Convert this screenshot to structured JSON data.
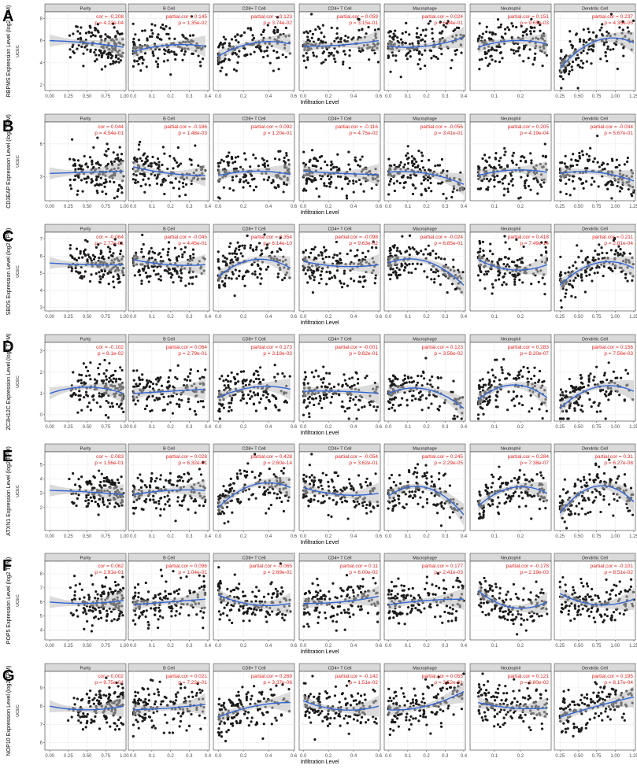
{
  "figure": {
    "xlabel": "Infiltration Level",
    "cohort": "UCEC"
  },
  "colors": {
    "point": "#1a1a1a",
    "fit": "#3366d6",
    "band": "#bdbdbd",
    "stat_text": "#e8231f",
    "strip_bg": "#d9d9d9",
    "grid": "#ebebeb"
  },
  "chart_data": [
    {
      "panel": "A",
      "ylabel": "RBPMS Expression Level (log2 TPM)",
      "yticks": [
        2,
        4,
        6,
        8
      ],
      "ylim": [
        1.5,
        8.6
      ],
      "facets": [
        {
          "name": "Purity",
          "stat1": "cor = -0.208",
          "stat2": "p = 4.22e-04",
          "type": "scatter",
          "trend": [
            6.0,
            5.8,
            5.4
          ]
        },
        {
          "name": "B Cell",
          "stat1": "partial.cor = 0.145",
          "stat2": "p = 1.35e-02",
          "type": "scatter",
          "trend": [
            5.0,
            5.6,
            5.5
          ]
        },
        {
          "name": "CD8+ T Cell",
          "stat1": "partial.cor = 0.123",
          "stat2": "p = 3.74e-02",
          "type": "scatter",
          "trend": [
            4.6,
            5.8,
            5.7
          ]
        },
        {
          "name": "CD4+ T Cell",
          "stat1": "partial.cor = 0.059",
          "stat2": "p = 3.15e-01",
          "type": "scatter",
          "trend": [
            5.5,
            5.6,
            6.0
          ]
        },
        {
          "name": "Macrophage",
          "stat1": "partial.cor = 0.024",
          "stat2": "p = 6.84e-01",
          "type": "scatter",
          "trend": [
            5.5,
            5.5,
            6.3
          ]
        },
        {
          "name": "Neutrophil",
          "stat1": "partial.cor = 0.151",
          "stat2": "p = 9.65e-03",
          "type": "scatter",
          "trend": [
            5.4,
            6.0,
            5.7
          ]
        },
        {
          "name": "Dendritic Cell",
          "stat1": "partial.cor = 0.237",
          "stat2": "p = 4.35e-05",
          "type": "scatter",
          "trend": [
            3.5,
            6.0,
            5.8
          ]
        }
      ]
    },
    {
      "panel": "B",
      "ylabel": "CD3EAP Expression Level (log2 TPM)",
      "yticks": [
        3,
        6
      ],
      "ylim": [
        0.8,
        8.0
      ],
      "facets": [
        {
          "name": "Purity",
          "stat1": "cor = 0.044",
          "stat2": "p = 4.54e-01",
          "type": "scatter",
          "trend": [
            3.3,
            3.4,
            3.5
          ]
        },
        {
          "name": "B Cell",
          "stat1": "partial.cor = -0.186",
          "stat2": "p = 1.48e-03",
          "type": "scatter",
          "trend": [
            3.9,
            3.3,
            3.1
          ]
        },
        {
          "name": "CD8+ T Cell",
          "stat1": "partial.cor = 0.092",
          "stat2": "p = 1.20e-01",
          "type": "scatter",
          "trend": [
            3.1,
            3.5,
            3.2
          ]
        },
        {
          "name": "CD4+ T Cell",
          "stat1": "partial.cor = -0.116",
          "stat2": "p = 4.75e-02",
          "type": "scatter",
          "trend": [
            3.5,
            3.3,
            3.2
          ]
        },
        {
          "name": "Macrophage",
          "stat1": "partial.cor = -0.056",
          "stat2": "p = 3.41e-01",
          "type": "scatter",
          "trend": [
            3.4,
            3.3,
            2.3
          ]
        },
        {
          "name": "Neutrophil",
          "stat1": "partial.cor = 0.205",
          "stat2": "p = 4.19e-04",
          "type": "scatter",
          "trend": [
            3.1,
            3.6,
            3.4
          ]
        },
        {
          "name": "Dendritic Cell",
          "stat1": "partial.cor = -0.034",
          "stat2": "p = 5.67e-01",
          "type": "scatter",
          "trend": [
            3.3,
            3.4,
            2.6
          ]
        }
      ]
    },
    {
      "panel": "C",
      "ylabel": "SBDS Expression Level (log2 TPM)",
      "yticks": [
        3,
        4,
        5,
        6,
        7
      ],
      "ylim": [
        2.8,
        7.4
      ],
      "facets": [
        {
          "name": "Purity",
          "stat1": "cor = -0.064",
          "stat2": "p = 2.77e-01",
          "type": "scatter",
          "trend": [
            5.6,
            5.5,
            5.5
          ]
        },
        {
          "name": "B Cell",
          "stat1": "partial.cor = -0.045",
          "stat2": "p = 4.45e-01",
          "type": "scatter",
          "trend": [
            5.8,
            5.5,
            5.5
          ]
        },
        {
          "name": "CD8+ T Cell",
          "stat1": "partial.cor = 0.354",
          "stat2": "p = 6.14e-10",
          "type": "scatter",
          "trend": [
            4.8,
            5.8,
            5.3
          ]
        },
        {
          "name": "CD4+ T Cell",
          "stat1": "partial.cor = -0.098",
          "stat2": "p = 9.63e-02",
          "type": "scatter",
          "trend": [
            5.7,
            5.4,
            5.5
          ]
        },
        {
          "name": "Macrophage",
          "stat1": "partial.cor = -0.024",
          "stat2": "p = 6.85e-01",
          "type": "scatter",
          "trend": [
            5.6,
            5.7,
            4.3
          ]
        },
        {
          "name": "Neutrophil",
          "stat1": "partial.cor = 0.418",
          "stat2": "p = 7.49e-14",
          "type": "scatter",
          "trend": [
            5.8,
            5.2,
            5.5
          ]
        },
        {
          "name": "Dendritic Cell",
          "stat1": "partial.cor = 0.211",
          "stat2": "p = 2.81e-04",
          "type": "scatter",
          "trend": [
            4.3,
            5.6,
            5.3
          ]
        }
      ]
    },
    {
      "panel": "D",
      "ylabel": "ZC3H12C Expression Level (log2 TPM)",
      "yticks": [
        0,
        1,
        2,
        3
      ],
      "ylim": [
        -0.3,
        3.4
      ],
      "facets": [
        {
          "name": "Purity",
          "stat1": "cor = -0.102",
          "stat2": "p = 8.1e-02",
          "type": "scatter",
          "trend": [
            1.0,
            1.3,
            1.0
          ]
        },
        {
          "name": "B Cell",
          "stat1": "partial.cor = 0.064",
          "stat2": "p = 2.79e-01",
          "type": "scatter",
          "trend": [
            1.0,
            1.1,
            1.2
          ]
        },
        {
          "name": "CD8+ T Cell",
          "stat1": "partial.cor = 0.173",
          "stat2": "p = 3.18e-03",
          "type": "scatter",
          "trend": [
            0.8,
            1.3,
            1.2
          ]
        },
        {
          "name": "CD4+ T Cell",
          "stat1": "partial.cor = -0.001",
          "stat2": "p = 9.82e-01",
          "type": "scatter",
          "trend": [
            1.1,
            1.1,
            1.0
          ]
        },
        {
          "name": "Macrophage",
          "stat1": "partial.cor = 0.123",
          "stat2": "p = 3.56e-02",
          "type": "scatter",
          "trend": [
            1.0,
            1.2,
            0.3
          ]
        },
        {
          "name": "Neutrophil",
          "stat1": "partial.cor = 0.283",
          "stat2": "p = 8.20e-07",
          "type": "scatter",
          "trend": [
            0.7,
            1.4,
            0.8
          ]
        },
        {
          "name": "Dendritic Cell",
          "stat1": "partial.cor = 0.156",
          "stat2": "p = 7.56e-03",
          "type": "scatter",
          "trend": [
            0.3,
            1.3,
            1.1
          ]
        }
      ]
    },
    {
      "panel": "E",
      "ylabel": "ATXN1 Expression Level (log2 TPM)",
      "yticks": [
        2,
        3,
        4,
        5
      ],
      "ylim": [
        0.4,
        5.9
      ],
      "facets": [
        {
          "name": "Purity",
          "stat1": "cor = -0.083",
          "stat2": "p = 1.56e-01",
          "type": "scatter",
          "trend": [
            3.2,
            3.1,
            2.9
          ]
        },
        {
          "name": "B Cell",
          "stat1": "partial.cor = 0.028",
          "stat2": "p = 6.32e-01",
          "type": "scatter",
          "trend": [
            2.9,
            3.2,
            3.2
          ]
        },
        {
          "name": "CD8+ T Cell",
          "stat1": "partial.cor = 0.428",
          "stat2": "p = 2.60e-14",
          "type": "scatter",
          "trend": [
            2.0,
            3.6,
            3.4
          ]
        },
        {
          "name": "CD4+ T Cell",
          "stat1": "partial.cor = -0.054",
          "stat2": "p = 3.62e-01",
          "type": "scatter",
          "trend": [
            3.4,
            2.9,
            3.0
          ]
        },
        {
          "name": "Macrophage",
          "stat1": "partial.cor = 0.245",
          "stat2": "p = 2.29e-05",
          "type": "scatter",
          "trend": [
            2.8,
            3.4,
            1.5
          ]
        },
        {
          "name": "Neutrophil",
          "stat1": "partial.cor = 0.284",
          "stat2": "p = 7.38e-07",
          "type": "scatter",
          "trend": [
            2.1,
            3.4,
            3.0
          ]
        },
        {
          "name": "Dendritic Cell",
          "stat1": "partial.cor = 0.31",
          "stat2": "p = 6.27e-08",
          "type": "scatter",
          "trend": [
            1.6,
            3.5,
            2.4
          ]
        }
      ]
    },
    {
      "panel": "F",
      "ylabel": "POP5 Expression Level (log2 TPM)",
      "yticks": [
        4,
        5,
        6,
        7,
        8
      ],
      "ylim": [
        3.3,
        8.9
      ],
      "facets": [
        {
          "name": "Purity",
          "stat1": "cor = 0.062",
          "stat2": "p = 2.91e-01",
          "type": "scatter",
          "trend": [
            6.0,
            5.9,
            6.1
          ]
        },
        {
          "name": "B Cell",
          "stat1": "partial.cor = 0.096",
          "stat2": "p = 1.04e-01",
          "type": "scatter",
          "trend": [
            5.8,
            6.0,
            6.2
          ]
        },
        {
          "name": "CD8+ T Cell",
          "stat1": "partial.cor = -0.065",
          "stat2": "p = 2.69e-01",
          "type": "scatter",
          "trend": [
            6.5,
            5.8,
            5.9
          ]
        },
        {
          "name": "CD4+ T Cell",
          "stat1": "partial.cor = 0.11",
          "stat2": "p = 6.00e-02",
          "type": "scatter",
          "trend": [
            5.9,
            6.0,
            6.4
          ]
        },
        {
          "name": "Macrophage",
          "stat1": "partial.cor = 0.177",
          "stat2": "p = 2.41e-03",
          "type": "scatter",
          "trend": [
            5.8,
            6.1,
            6.2
          ]
        },
        {
          "name": "Neutrophil",
          "stat1": "partial.cor = -0.178",
          "stat2": "p = 2.19e-03",
          "type": "scatter",
          "trend": [
            6.8,
            5.6,
            6.0
          ]
        },
        {
          "name": "Dendritic Cell",
          "stat1": "partial.cor = -0.101",
          "stat2": "p = 8.51e-02",
          "type": "scatter",
          "trend": [
            6.6,
            5.8,
            6.2
          ]
        }
      ]
    },
    {
      "panel": "G",
      "ylabel": "NOP10 Expression Level (log2 TPM)",
      "yticks": [
        6,
        7,
        8,
        9
      ],
      "ylim": [
        5.6,
        9.9
      ],
      "facets": [
        {
          "name": "Purity",
          "stat1": "cor = 0.002",
          "stat2": "p = 9.75e-01",
          "type": "scatter",
          "trend": [
            8.0,
            7.8,
            8.0
          ]
        },
        {
          "name": "B Cell",
          "stat1": "partial.cor = 0.021",
          "stat2": "p = 7.22e-01",
          "type": "scatter",
          "trend": [
            7.8,
            7.9,
            8.1
          ]
        },
        {
          "name": "CD8+ T Cell",
          "stat1": "partial.cor = 0.269",
          "stat2": "p = 3.37e-06",
          "type": "scatter",
          "trend": [
            7.4,
            8.0,
            8.2
          ]
        },
        {
          "name": "CD4+ T Cell",
          "stat1": "partial.cor = -0.142",
          "stat2": "p = 1.51e-02",
          "type": "scatter",
          "trend": [
            8.3,
            7.8,
            8.0
          ]
        },
        {
          "name": "Macrophage",
          "stat1": "partial.cor = 0.055",
          "stat2": "p = 3.52e-01",
          "type": "scatter",
          "trend": [
            7.8,
            8.0,
            8.8
          ]
        },
        {
          "name": "Neutrophil",
          "stat1": "partial.cor = 0.121",
          "stat2": "p = 3.80e-02",
          "type": "scatter",
          "trend": [
            8.2,
            7.9,
            7.9
          ]
        },
        {
          "name": "Dendritic Cell",
          "stat1": "partial.cor = 0.195",
          "stat2": "p = 8.17e-04",
          "type": "scatter",
          "trend": [
            7.4,
            8.0,
            8.5
          ]
        }
      ]
    }
  ],
  "xaxes": [
    {
      "ticks": [
        "0.00",
        "0.25",
        "0.50",
        "0.75",
        "1.00"
      ]
    },
    {
      "ticks": [
        "0.0",
        "0.1",
        "0.2",
        "0.3",
        "0.4"
      ]
    },
    {
      "ticks": [
        "0.0",
        "0.2",
        "0.4",
        "0.6"
      ]
    },
    {
      "ticks": [
        "0.0",
        "0.2",
        "0.4",
        "0.6"
      ]
    },
    {
      "ticks": [
        "0.0",
        "0.1",
        "0.2",
        "0.3",
        "0.4"
      ]
    },
    {
      "ticks": [
        "0.1",
        "0.2"
      ]
    },
    {
      "ticks": [
        "0.25",
        "0.50",
        "0.75",
        "1.00",
        "1.25"
      ]
    }
  ]
}
